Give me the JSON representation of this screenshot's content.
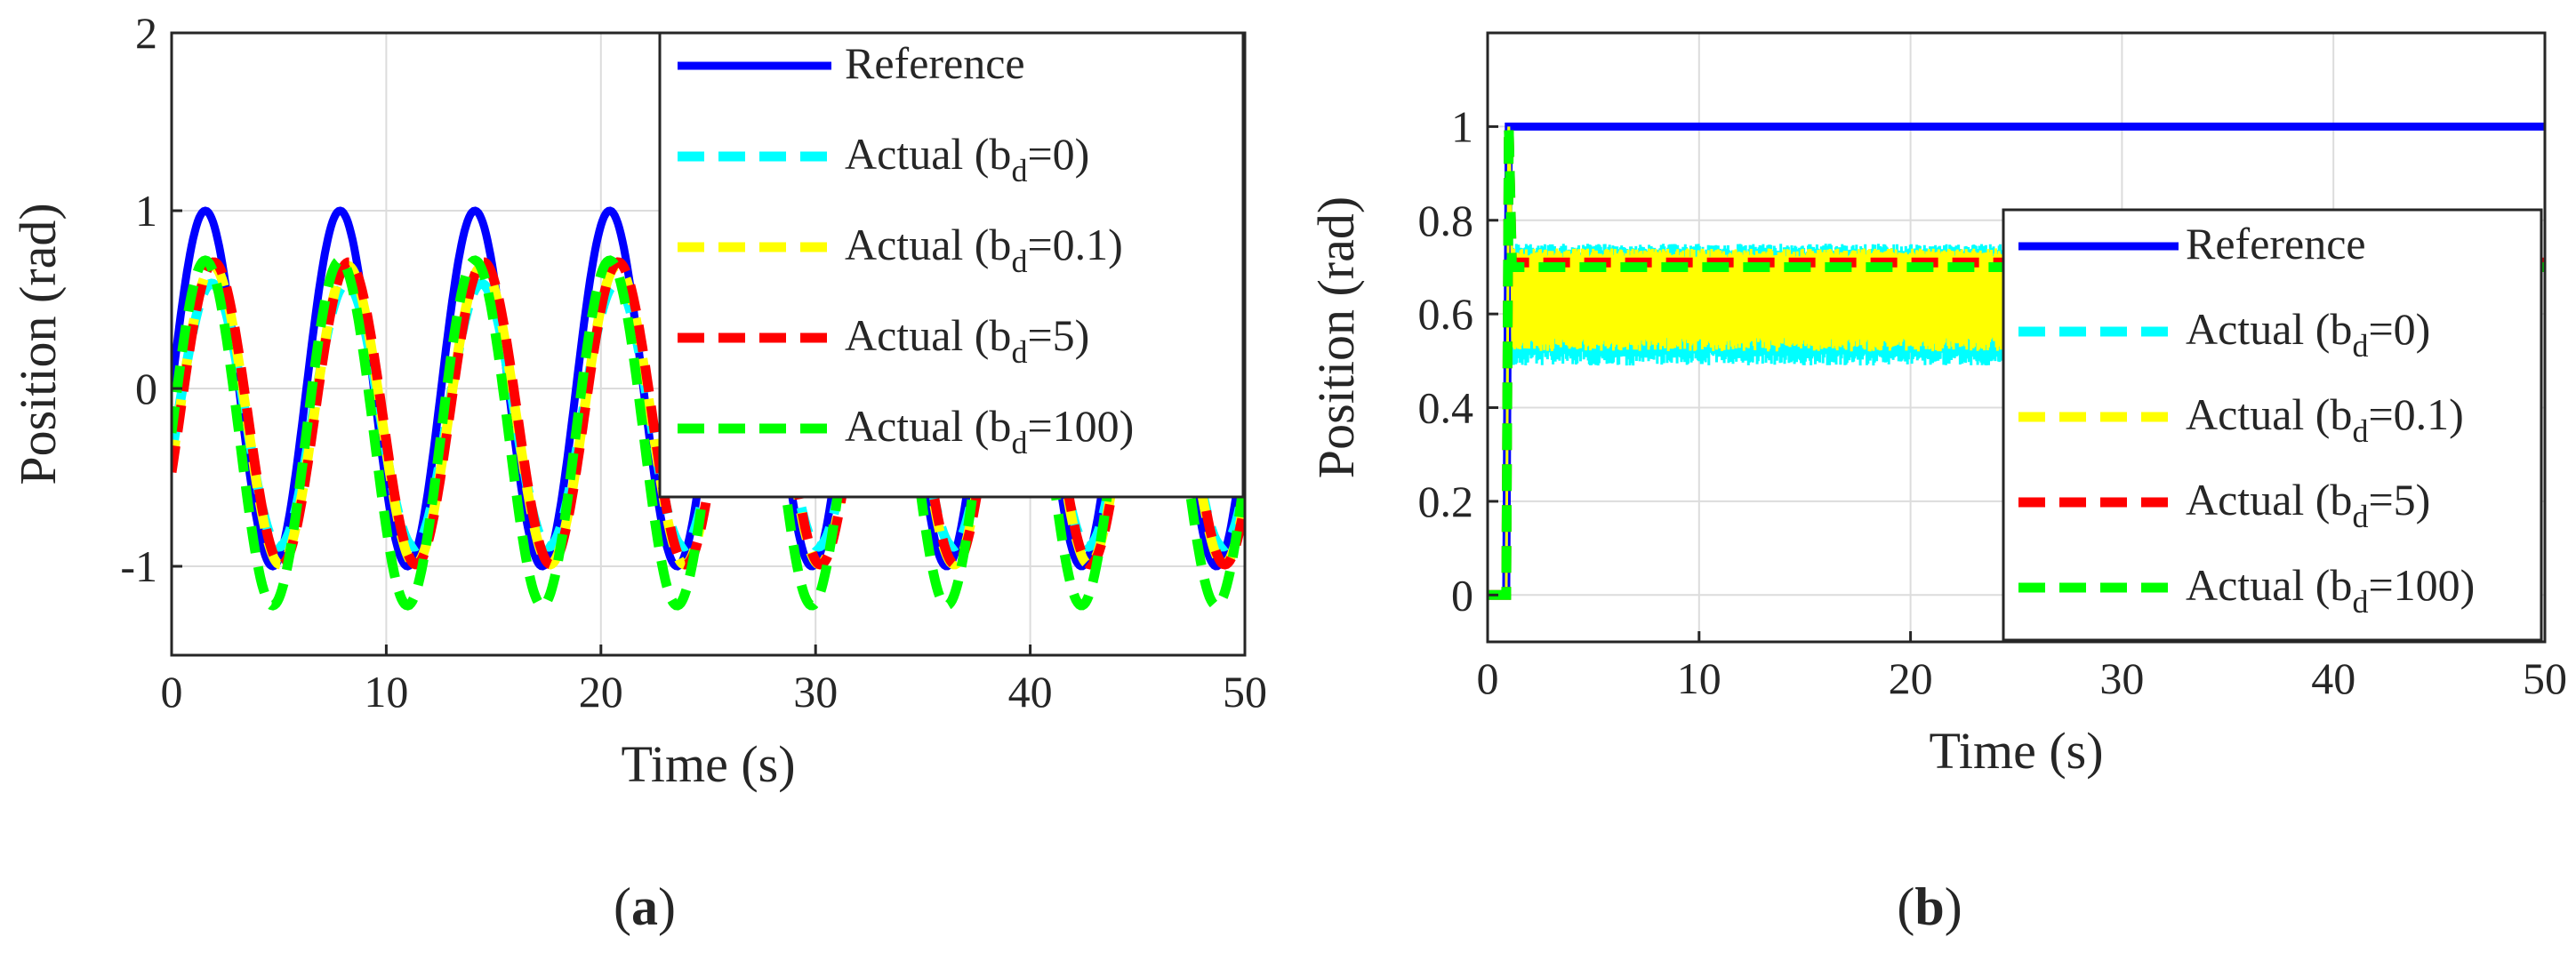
{
  "chart_data": [
    {
      "panel": "a",
      "type": "line",
      "xlabel": "Time (s)",
      "ylabel": "Position (rad)",
      "xlim": [
        0,
        50
      ],
      "ylim": [
        -1.5,
        2
      ],
      "xticks": [
        0,
        10,
        20,
        30,
        40,
        50
      ],
      "yticks": [
        -1,
        0,
        1,
        2
      ],
      "ytick_labels": [
        "-1",
        "0",
        "1",
        "2"
      ],
      "grid": true,
      "legend_position": "top-right",
      "legend": [
        {
          "key": "ref",
          "label": "Reference",
          "color": "#0000ff",
          "style": "solid"
        },
        {
          "key": "bd0",
          "label": "Actual (b",
          "sub": "d",
          "suffix": "=0)",
          "color": "#00ffff",
          "style": "dashed"
        },
        {
          "key": "bd01",
          "label": "Actual (b",
          "sub": "d",
          "suffix": "=0.1)",
          "color": "#ffff00",
          "style": "dashed"
        },
        {
          "key": "bd5",
          "label": "Actual (b",
          "sub": "d",
          "suffix": "=5)",
          "color": "#ff0000",
          "style": "dashed"
        },
        {
          "key": "bd100",
          "label": "Actual (b",
          "sub": "d",
          "suffix": "=100)",
          "color": "#00ff00",
          "style": "dashed"
        }
      ],
      "series": [
        {
          "key": "ref",
          "name": "Reference",
          "model": "sine",
          "amplitude": 1.0,
          "period": 6.28,
          "phase": 0,
          "offset": 0,
          "x_start": 0,
          "x_end": 50
        },
        {
          "key": "bd0",
          "name": "Actual (bd=0)",
          "model": "sine",
          "amplitude": 0.74,
          "period": 6.28,
          "phase": -0.3,
          "offset": -0.15,
          "x_start": 0,
          "x_end": 50
        },
        {
          "key": "bd01",
          "name": "Actual (bd=0.1)",
          "model": "sine",
          "amplitude": 0.84,
          "period": 6.28,
          "phase": -0.35,
          "offset": -0.15,
          "x_start": 0,
          "x_end": 50
        },
        {
          "key": "bd5",
          "name": "Actual (bd=5)",
          "model": "sine",
          "amplitude": 0.85,
          "period": 6.28,
          "phase": -0.4,
          "offset": -0.14,
          "x_start": 0,
          "x_end": 50
        },
        {
          "key": "bd100",
          "name": "Actual (bd=100)",
          "model": "sine",
          "amplitude": 0.97,
          "period": 6.28,
          "phase": 0.0,
          "offset": -0.25,
          "x_start": 0,
          "x_end": 50
        }
      ]
    },
    {
      "panel": "b",
      "type": "line",
      "xlabel": "Time (s)",
      "ylabel": "Position (rad)",
      "xlim": [
        0,
        50
      ],
      "ylim": [
        -0.1,
        1.2
      ],
      "xticks": [
        0,
        10,
        20,
        30,
        40,
        50
      ],
      "yticks": [
        0,
        0.2,
        0.4,
        0.6,
        0.8,
        1
      ],
      "ytick_labels": [
        "0",
        "0.2",
        "0.4",
        "0.6",
        "0.8",
        "1"
      ],
      "grid": true,
      "legend_position": "right",
      "legend": [
        {
          "key": "ref",
          "label": "Reference",
          "color": "#0000ff",
          "style": "solid"
        },
        {
          "key": "bd0",
          "label": "Actual (b",
          "sub": "d",
          "suffix": "=0)",
          "color": "#00ffff",
          "style": "dashed"
        },
        {
          "key": "bd01",
          "label": "Actual (b",
          "sub": "d",
          "suffix": "=0.1)",
          "color": "#ffff00",
          "style": "dashed"
        },
        {
          "key": "bd5",
          "label": "Actual (b",
          "sub": "d",
          "suffix": "=5)",
          "color": "#ff0000",
          "style": "dashed"
        },
        {
          "key": "bd100",
          "label": "Actual (b",
          "sub": "d",
          "suffix": "=100)",
          "color": "#00ff00",
          "style": "dashed"
        }
      ],
      "series": [
        {
          "key": "ref",
          "name": "Reference",
          "model": "step",
          "step_time": 1,
          "final": 1.0
        },
        {
          "key": "bd0",
          "name": "Actual (bd=0)",
          "model": "oscillating_band",
          "step_time": 1,
          "peak": 1.0,
          "low": 0.49,
          "high": 0.75,
          "x_end": 24.5
        },
        {
          "key": "bd01",
          "name": "Actual (bd=0.1)",
          "model": "oscillating_band",
          "step_time": 1,
          "peak": 1.0,
          "low": 0.52,
          "high": 0.74,
          "x_end": 24.5
        },
        {
          "key": "bd5",
          "name": "Actual (bd=5)",
          "model": "step",
          "step_time": 1,
          "peak": 1.0,
          "final": 0.71
        },
        {
          "key": "bd100",
          "name": "Actual (bd=100)",
          "model": "step",
          "step_time": 1,
          "peak": 1.0,
          "final": 0.7
        }
      ]
    }
  ],
  "captions": {
    "a": {
      "open": "(",
      "letter": "a",
      "close": ")"
    },
    "b": {
      "open": "(",
      "letter": "b",
      "close": ")"
    }
  }
}
